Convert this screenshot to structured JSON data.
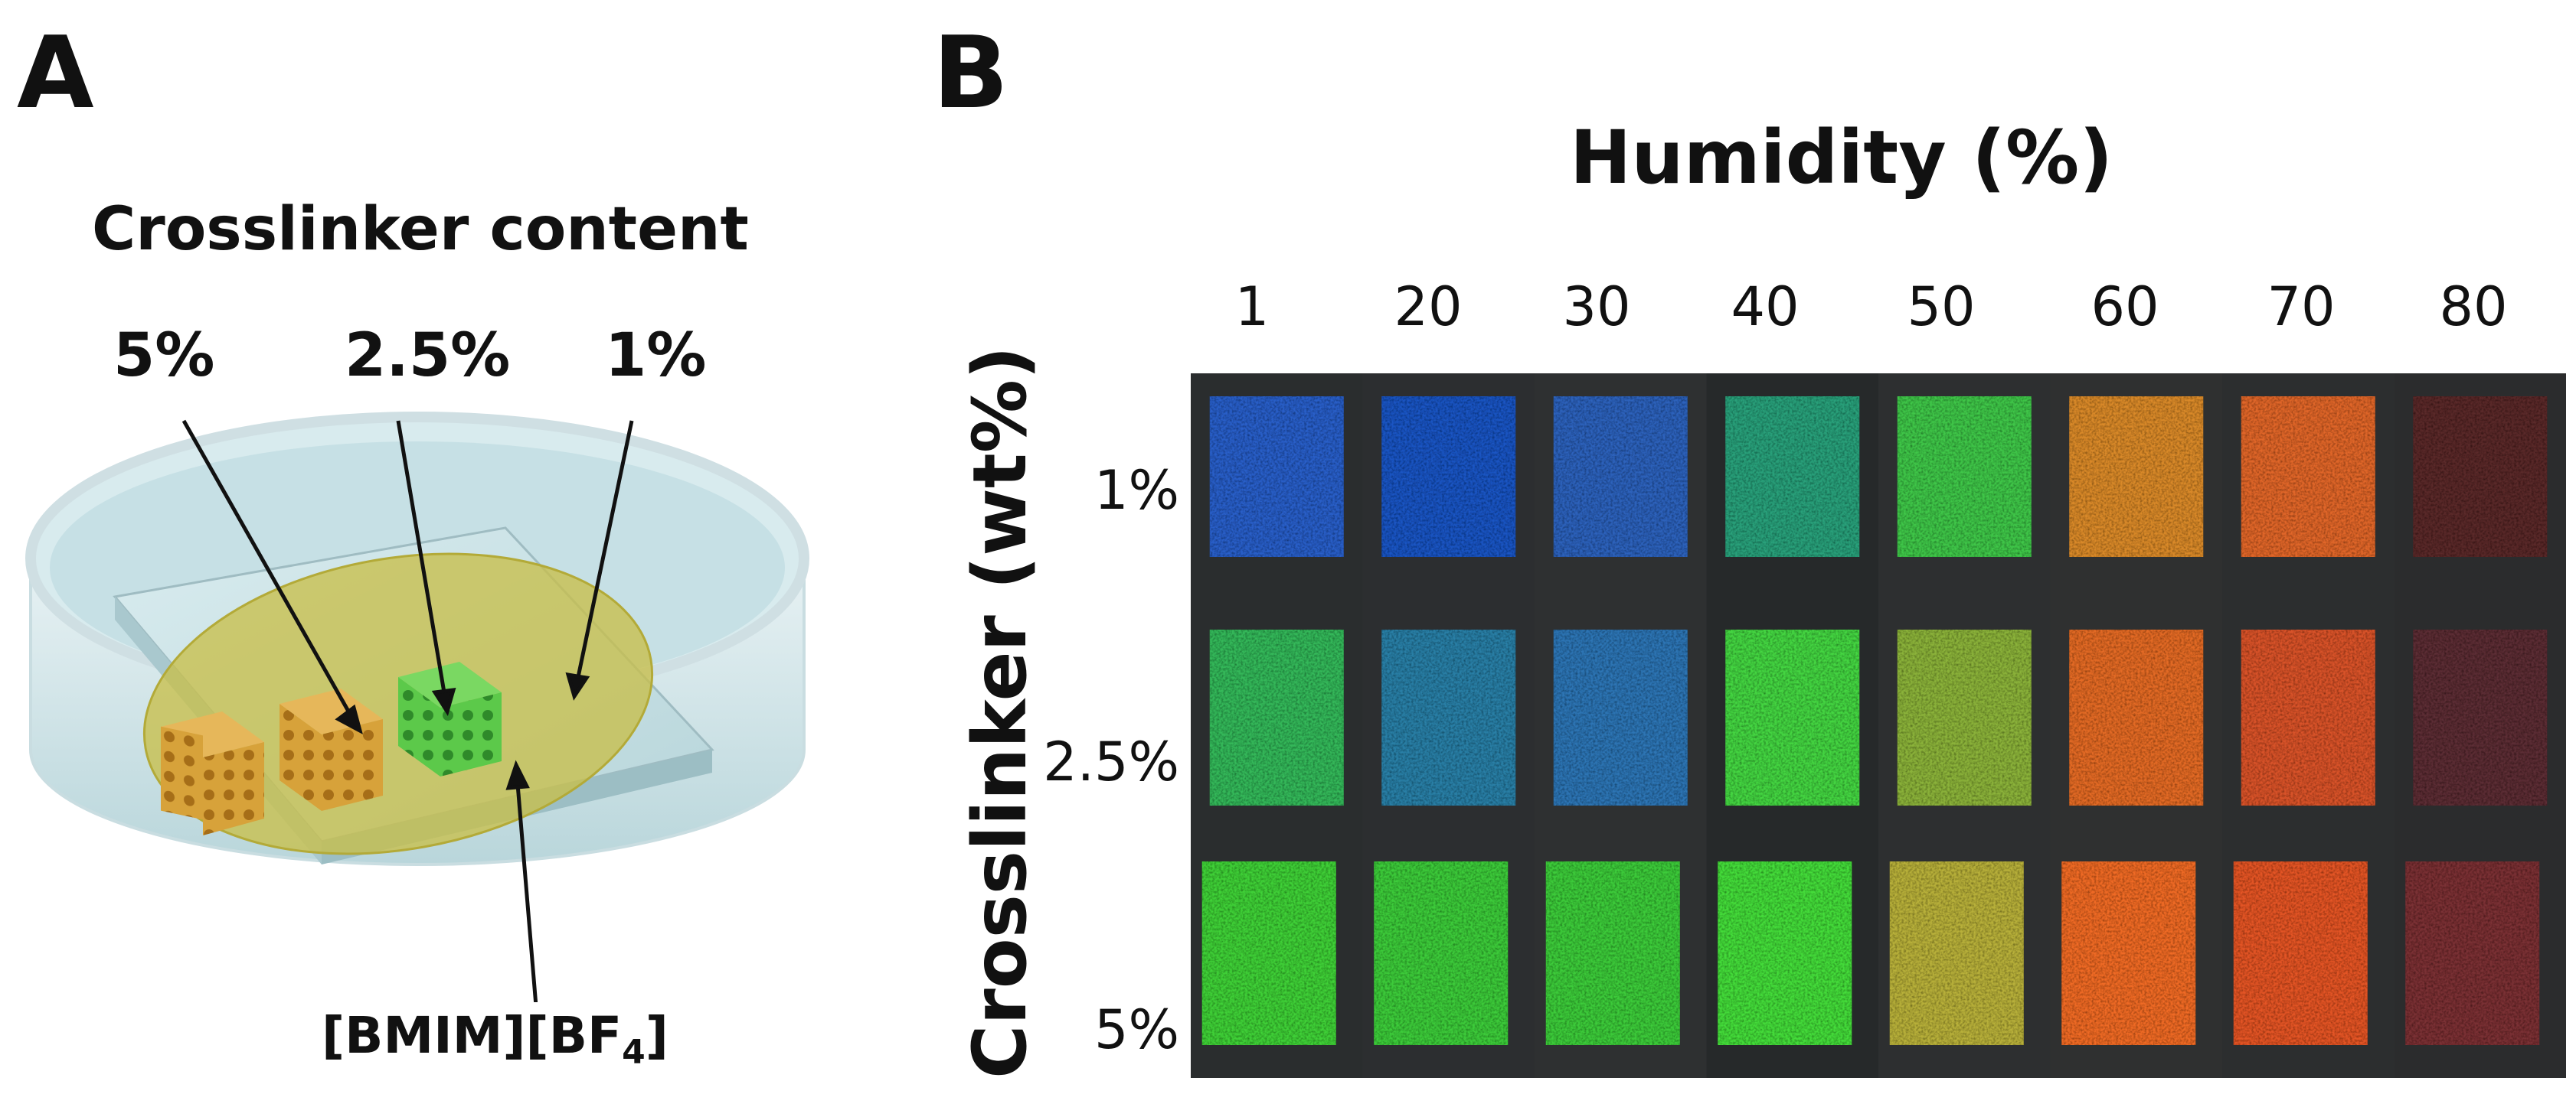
{
  "panel_a": {
    "letter": "A",
    "title": "Crosslinker content",
    "labels": [
      "5%",
      "2.5%",
      "1%"
    ],
    "liquid_label": "[BMIM][BF",
    "liquid_subscript": "4",
    "liquid_close": "]"
  },
  "panel_b": {
    "letter": "B",
    "x_title": "Humidity (%)",
    "y_title": "Crosslinker (wt%)",
    "humidity_levels": [
      "1",
      "20",
      "30",
      "40",
      "50",
      "60",
      "70",
      "80"
    ],
    "crosslinker_levels": [
      "1%",
      "2.5%",
      "5%"
    ],
    "swatch_colors": [
      [
        "#2a5fc8",
        "#1f55c2",
        "#2f62bb",
        "#2aa07a",
        "#3fc64a",
        "#d9892a",
        "#e0662a",
        "#5a2a2c"
      ],
      [
        "#36b85a",
        "#2a7fa6",
        "#2f75b4",
        "#44d542",
        "#8bb23a",
        "#e36a26",
        "#d8522c",
        "#5b2f34"
      ],
      [
        "#3fd038",
        "#3ccb3a",
        "#3ccb3a",
        "#45dc3a",
        "#b8b03a",
        "#ef6a26",
        "#e35528",
        "#7a3236"
      ]
    ]
  }
}
